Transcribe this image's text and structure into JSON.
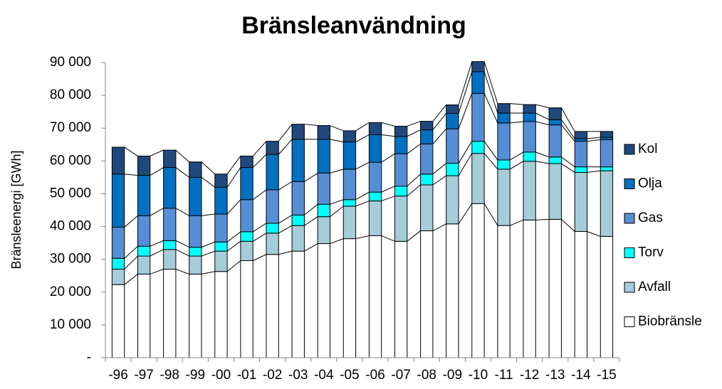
{
  "chart_data": {
    "type": "stacked_bar",
    "title": "Bränsleanvändning",
    "y_label": "Bränsleenergi [GWh]",
    "categories": [
      "-96",
      "-97",
      "-98",
      "-99",
      "-00",
      "-01",
      "-02",
      "-03",
      "-04",
      "-05",
      "-06",
      "-07",
      "-08",
      "-09",
      "-10",
      "-11",
      "-12",
      "-13",
      "-14",
      "-15"
    ],
    "series": [
      {
        "name": "Biobränsle",
        "color": "#ffffff",
        "values": [
          22300,
          25500,
          27000,
          25500,
          26300,
          29600,
          31500,
          32500,
          34800,
          36300,
          37200,
          35500,
          38700,
          40800,
          47000,
          40300,
          42000,
          42200,
          38500,
          37000
        ]
      },
      {
        "name": "Avfall",
        "color": "#a5cdd9",
        "values": [
          4700,
          5500,
          6000,
          5500,
          6200,
          5900,
          6500,
          7800,
          8200,
          9900,
          10600,
          13800,
          14000,
          14700,
          15300,
          17200,
          17900,
          17000,
          18000,
          20000
        ]
      },
      {
        "name": "Torv",
        "color": "#00ffff",
        "values": [
          3300,
          3000,
          2700,
          2700,
          2800,
          2900,
          3000,
          3200,
          3800,
          2000,
          2700,
          3000,
          3300,
          3800,
          3700,
          2800,
          2800,
          2000,
          1700,
          1200
        ]
      },
      {
        "name": "Gas",
        "color": "#558ed5",
        "values": [
          9500,
          9300,
          9900,
          9600,
          8500,
          9800,
          10200,
          10200,
          9500,
          9300,
          9100,
          9900,
          9200,
          10500,
          14600,
          11300,
          9300,
          9800,
          7800,
          8300
        ]
      },
      {
        "name": "Olja",
        "color": "#0070c0",
        "values": [
          16200,
          12300,
          12400,
          11700,
          8200,
          9800,
          10800,
          12900,
          10300,
          8300,
          8400,
          5300,
          4300,
          4700,
          6600,
          3000,
          2600,
          1600,
          800,
          700
        ]
      },
      {
        "name": "Kol",
        "color": "#1f497d",
        "values": [
          8200,
          5900,
          5300,
          4700,
          4000,
          3500,
          4000,
          4600,
          4200,
          3400,
          3700,
          3100,
          2600,
          2600,
          3100,
          2900,
          2600,
          3600,
          2200,
          1800
        ]
      }
    ],
    "ylim": [
      0,
      90000
    ],
    "yticks": [
      {
        "value": 0,
        "label": "-"
      },
      {
        "value": 10000,
        "label": "10 000"
      },
      {
        "value": 20000,
        "label": "20 000"
      },
      {
        "value": 30000,
        "label": "30 000"
      },
      {
        "value": 40000,
        "label": "40 000"
      },
      {
        "value": 50000,
        "label": "50 000"
      },
      {
        "value": 60000,
        "label": "60 000"
      },
      {
        "value": 70000,
        "label": "70 000"
      },
      {
        "value": 80000,
        "label": "80 000"
      },
      {
        "value": 90000,
        "label": "90 000"
      }
    ],
    "legend": "right",
    "grid": false
  }
}
